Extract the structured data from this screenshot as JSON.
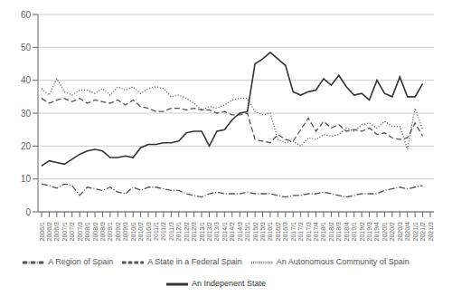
{
  "chart_data": {
    "type": "line",
    "categories": [
      "2006/1",
      "2006/2",
      "2006/3",
      "2007/1",
      "2007/2",
      "2007/3",
      "2008/1",
      "2008/2",
      "2008/3",
      "2009/1",
      "2009/2",
      "2009/3",
      "2010/1",
      "2010/2",
      "2010/3",
      "2011/1",
      "2011/2",
      "2011/3",
      "2012/1",
      "2012/2",
      "2012/3",
      "2013/1",
      "2013/2",
      "2013/3",
      "2014/1",
      "2014/2",
      "2014/3",
      "2015/1",
      "2015/2",
      "2015/3",
      "2016/1",
      "2016/2",
      "2016/3",
      "2017/1",
      "2017/2",
      "2017/3",
      "2017/4",
      "2018/1",
      "2018/2",
      "2018/3",
      "2018/4",
      "2019/1",
      "2019/2",
      "2019/3",
      "2019/4",
      "2020/1",
      "2020/2",
      "2020/3",
      "2020/4",
      "2021/1",
      "2021/2",
      "2021/3"
    ],
    "series": [
      {
        "name": "A Region of Spain",
        "color": "#555555",
        "line_style": "dashdot",
        "values": [
          8.5,
          8.0,
          7.2,
          8.5,
          8.0,
          5.0,
          7.5,
          7.0,
          6.5,
          7.5,
          6.0,
          5.5,
          7.5,
          6.5,
          7.5,
          7.5,
          7.0,
          6.5,
          6.5,
          5.5,
          5.0,
          4.5,
          5.5,
          6.0,
          5.5,
          5.5,
          5.5,
          6.0,
          5.5,
          5.5,
          5.5,
          5.0,
          4.5,
          5.0,
          5.0,
          5.5,
          5.5,
          6.0,
          5.5,
          5.0,
          4.5,
          5.0,
          5.5,
          5.5,
          5.5,
          6.5,
          7.0,
          7.5,
          7.0,
          7.5,
          8.0,
          null
        ]
      },
      {
        "name": "An Autonomous Community of Spain",
        "color": "#555555",
        "line_style": "dotted",
        "values": [
          37.5,
          35.5,
          40.5,
          36.5,
          35.5,
          37.0,
          37.0,
          36.0,
          37.5,
          35.5,
          38.0,
          37.0,
          38.0,
          36.0,
          37.5,
          38.0,
          37.5,
          35.0,
          35.5,
          34.5,
          33.0,
          31.0,
          32.0,
          31.5,
          32.5,
          34.0,
          34.5,
          34.5,
          30.5,
          29.5,
          30.0,
          22.0,
          21.0,
          21.5,
          20.0,
          22.5,
          22.0,
          23.5,
          23.0,
          23.5,
          25.5,
          24.5,
          26.5,
          27.0,
          25.5,
          27.5,
          26.0,
          26.0,
          19.0,
          31.5,
          25.0,
          null
        ]
      },
      {
        "name": "A State in a Federal Spain",
        "color": "#555555",
        "line_style": "dashed",
        "values": [
          34.5,
          33.0,
          34.0,
          34.5,
          33.5,
          34.5,
          33.0,
          34.0,
          33.5,
          33.0,
          34.0,
          32.5,
          34.0,
          32.0,
          31.5,
          30.5,
          30.5,
          31.5,
          31.5,
          31.0,
          31.5,
          31.0,
          31.0,
          30.0,
          30.5,
          29.5,
          29.5,
          30.0,
          22.0,
          21.5,
          21.0,
          23.5,
          22.0,
          21.5,
          25.0,
          28.5,
          24.5,
          27.5,
          25.5,
          26.5,
          24.5,
          25.0,
          24.5,
          25.5,
          23.5,
          24.0,
          22.5,
          22.0,
          22.5,
          27.0,
          23.0,
          null
        ]
      },
      {
        "name": "An Indepenent State",
        "color": "#333333",
        "line_style": "solid",
        "values": [
          14.0,
          15.5,
          15.0,
          14.5,
          16.0,
          17.5,
          18.5,
          19.0,
          18.5,
          16.5,
          16.5,
          17.0,
          16.5,
          19.5,
          20.5,
          20.5,
          21.0,
          21.0,
          21.5,
          24.0,
          24.5,
          24.5,
          20.0,
          24.5,
          25.0,
          28.0,
          30.0,
          30.5,
          45.0,
          46.5,
          48.5,
          46.5,
          44.5,
          36.5,
          35.5,
          36.5,
          37.0,
          40.5,
          38.5,
          41.5,
          38.0,
          35.5,
          36.0,
          34.0,
          40.0,
          36.0,
          35.0,
          41.0,
          35.0,
          35.0,
          39.0,
          null
        ]
      }
    ],
    "ylim": [
      0,
      60
    ],
    "yticks": [
      0,
      10,
      20,
      30,
      40,
      50,
      60
    ],
    "grid": true,
    "legend": "bottom"
  }
}
